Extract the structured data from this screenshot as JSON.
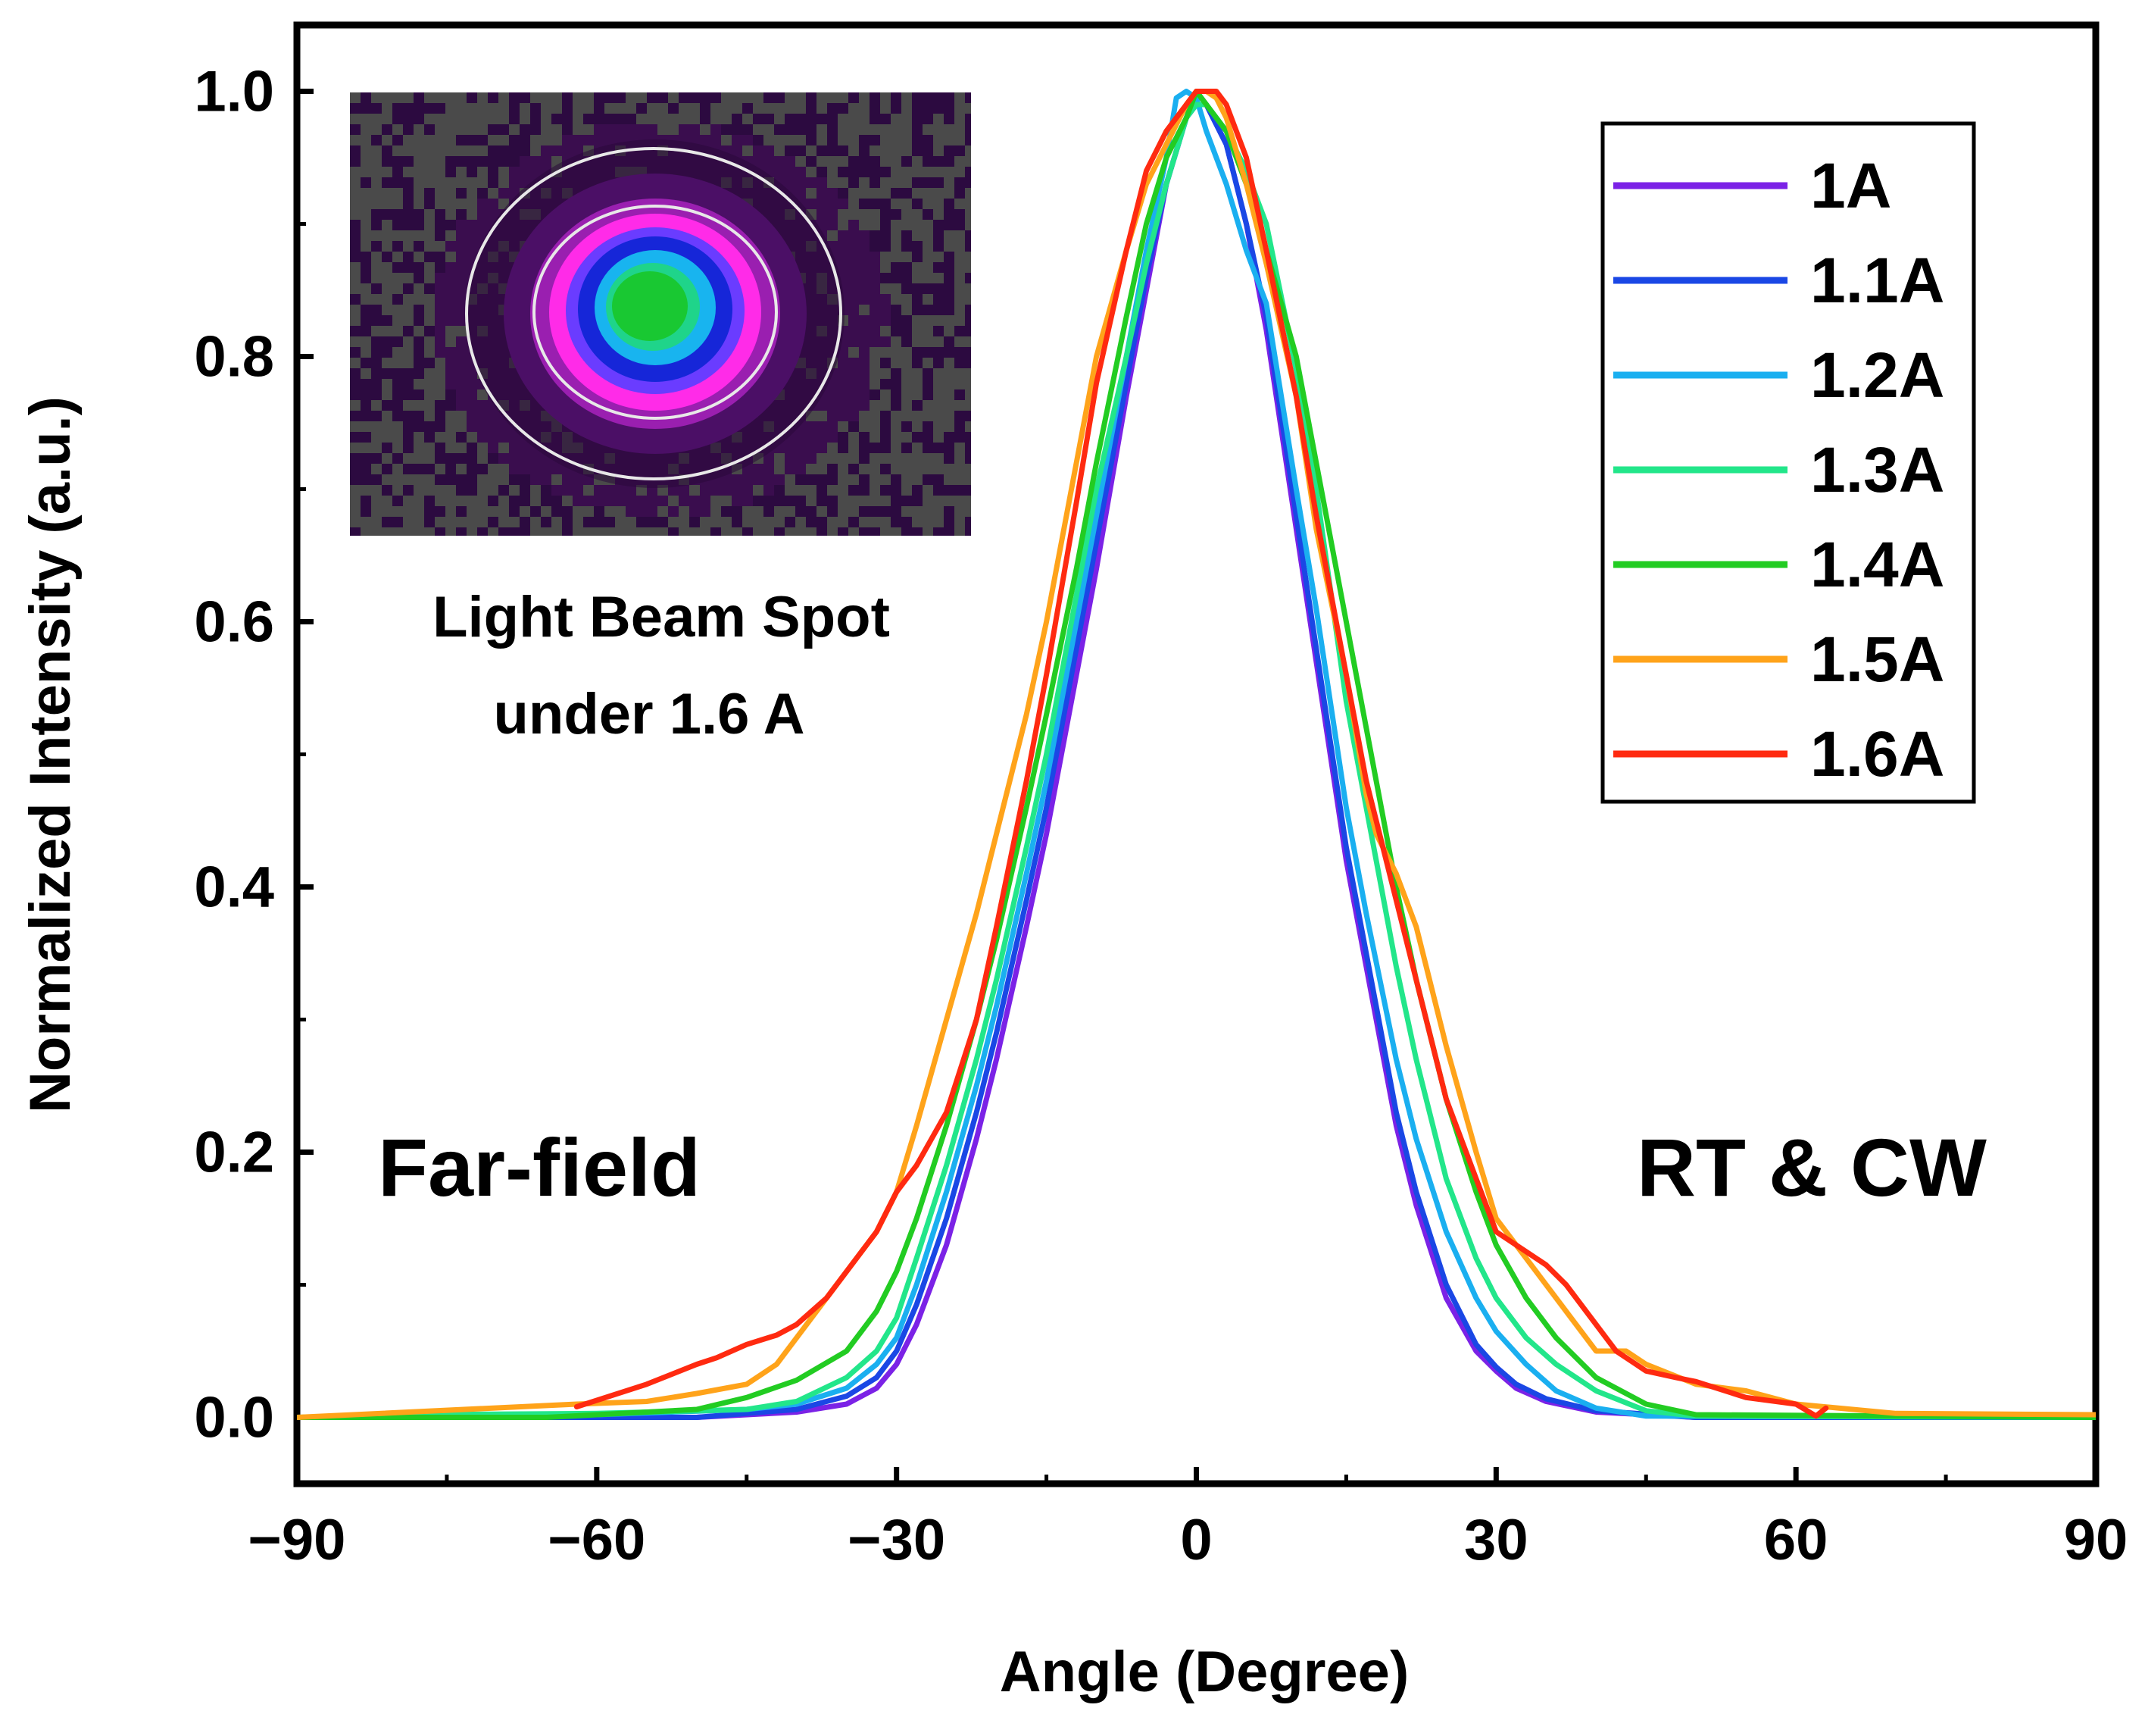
{
  "chart_data": {
    "type": "line",
    "title": "",
    "xlabel": "Angle (Degree)",
    "ylabel": "Normalized Intensity (a.u.)",
    "xlim": [
      -90,
      90
    ],
    "ylim": [
      -0.05,
      1.05
    ],
    "xticks": [
      -90,
      -60,
      -30,
      0,
      30,
      60,
      90
    ],
    "xtick_labels": [
      "−90",
      "−60",
      "−30",
      "0",
      "30",
      "60",
      "90"
    ],
    "yticks": [
      0.0,
      0.2,
      0.4,
      0.6,
      0.8,
      1.0
    ],
    "ytick_labels": [
      "0.0",
      "0.2",
      "0.4",
      "0.6",
      "0.8",
      "1.0"
    ],
    "grid": false,
    "legend_position": "top-right",
    "annotations": {
      "left": "Far-field",
      "right": "RT & CW",
      "inset_caption_line1": "Light Beam Spot",
      "inset_caption_line2": "under 1.6 A"
    },
    "series": [
      {
        "name": "1A",
        "color": "#7B22E6",
        "x": [
          -90,
          -50,
          -40,
          -35,
          -32,
          -30,
          -28,
          -25,
          -22,
          -20,
          -17,
          -15,
          -12,
          -10,
          -7,
          -5,
          -3,
          -1,
          0,
          1,
          3,
          5,
          7,
          10,
          12,
          15,
          17,
          20,
          22,
          25,
          28,
          30,
          32,
          35,
          40,
          50,
          90
        ],
        "y": [
          0.0,
          0.0,
          0.004,
          0.01,
          0.022,
          0.04,
          0.07,
          0.13,
          0.21,
          0.27,
          0.37,
          0.44,
          0.56,
          0.64,
          0.77,
          0.85,
          0.93,
          0.98,
          1.0,
          0.99,
          0.96,
          0.9,
          0.82,
          0.67,
          0.57,
          0.42,
          0.34,
          0.22,
          0.16,
          0.09,
          0.05,
          0.035,
          0.022,
          0.012,
          0.004,
          0.0,
          0.0
        ]
      },
      {
        "name": "1.1A",
        "color": "#1A47E5",
        "x": [
          -90,
          -50,
          -40,
          -35,
          -32,
          -30,
          -28,
          -25,
          -22,
          -20,
          -17,
          -15,
          -12,
          -10,
          -7,
          -5,
          -3,
          -1,
          0,
          1,
          3,
          5,
          7,
          10,
          12,
          15,
          17,
          20,
          22,
          25,
          28,
          30,
          32,
          35,
          40,
          50,
          90
        ],
        "y": [
          0.0,
          0.0,
          0.006,
          0.016,
          0.03,
          0.05,
          0.085,
          0.15,
          0.23,
          0.29,
          0.39,
          0.46,
          0.58,
          0.66,
          0.78,
          0.86,
          0.93,
          0.98,
          0.99,
          0.99,
          0.96,
          0.9,
          0.83,
          0.68,
          0.58,
          0.43,
          0.35,
          0.23,
          0.17,
          0.1,
          0.055,
          0.038,
          0.025,
          0.014,
          0.005,
          0.0,
          0.0
        ]
      },
      {
        "name": "1.2A",
        "color": "#1AAFF0",
        "x": [
          -90,
          -60,
          -45,
          -40,
          -35,
          -32,
          -30,
          -28,
          -25,
          -22,
          -20,
          -17,
          -15,
          -12,
          -10,
          -7,
          -5,
          -3,
          -2,
          -1,
          0,
          1,
          3,
          5,
          7,
          10,
          12,
          15,
          17,
          20,
          22,
          25,
          28,
          30,
          33,
          36,
          40,
          45,
          90
        ],
        "y": [
          0.0,
          0.002,
          0.006,
          0.01,
          0.022,
          0.04,
          0.06,
          0.1,
          0.17,
          0.25,
          0.31,
          0.41,
          0.48,
          0.6,
          0.68,
          0.8,
          0.88,
          0.95,
          0.995,
          1.0,
          0.995,
          0.97,
          0.93,
          0.88,
          0.84,
          0.7,
          0.61,
          0.46,
          0.38,
          0.27,
          0.21,
          0.14,
          0.09,
          0.065,
          0.04,
          0.02,
          0.007,
          0.001,
          0.0
        ]
      },
      {
        "name": "1.3A",
        "color": "#22E68A",
        "x": [
          -90,
          -78,
          -60,
          -45,
          -40,
          -35,
          -32,
          -30,
          -28,
          -25,
          -22,
          -20,
          -17,
          -15,
          -12,
          -10,
          -7,
          -5,
          -3,
          -1,
          0,
          1,
          3,
          5,
          7,
          10,
          12,
          15,
          17,
          20,
          22,
          25,
          28,
          30,
          33,
          36,
          40,
          45,
          50,
          90
        ],
        "y": [
          0.0,
          0.002,
          0.003,
          0.006,
          0.012,
          0.03,
          0.05,
          0.075,
          0.12,
          0.19,
          0.27,
          0.33,
          0.43,
          0.5,
          0.62,
          0.7,
          0.8,
          0.87,
          0.93,
          0.98,
          0.99,
          0.99,
          0.97,
          0.94,
          0.9,
          0.79,
          0.7,
          0.54,
          0.46,
          0.34,
          0.27,
          0.18,
          0.12,
          0.09,
          0.06,
          0.04,
          0.02,
          0.005,
          0.001,
          0.0
        ]
      },
      {
        "name": "1.4A",
        "color": "#22CC22",
        "x": [
          -90,
          -65,
          -50,
          -45,
          -40,
          -35,
          -32,
          -30,
          -28,
          -25,
          -22,
          -20,
          -17,
          -15,
          -12,
          -10,
          -7,
          -5,
          -3,
          -1,
          0,
          1,
          3,
          5,
          7,
          10,
          12,
          15,
          17,
          20,
          22,
          25,
          28,
          30,
          33,
          36,
          40,
          45,
          50,
          90
        ],
        "y": [
          0.0,
          0.0,
          0.006,
          0.015,
          0.028,
          0.05,
          0.08,
          0.11,
          0.15,
          0.22,
          0.3,
          0.36,
          0.46,
          0.53,
          0.64,
          0.72,
          0.83,
          0.9,
          0.95,
          0.98,
          1.0,
          0.99,
          0.97,
          0.93,
          0.88,
          0.8,
          0.72,
          0.6,
          0.52,
          0.4,
          0.33,
          0.24,
          0.17,
          0.13,
          0.09,
          0.06,
          0.03,
          0.01,
          0.002,
          0.0
        ]
      },
      {
        "name": "1.5A",
        "color": "#FFA31A",
        "x": [
          -90,
          -62,
          -55,
          -50,
          -45,
          -42,
          -40,
          -37,
          -35,
          -32,
          -30,
          -28,
          -25,
          -22,
          -20,
          -17,
          -15,
          -12,
          -10,
          -7,
          -5,
          -3,
          -1,
          0,
          1,
          2,
          3,
          5,
          7,
          10,
          12,
          15,
          17,
          18,
          20,
          22,
          25,
          28,
          30,
          33,
          35,
          38,
          40,
          43,
          45,
          50,
          55,
          60,
          70,
          90
        ],
        "y": [
          0.0,
          0.01,
          0.012,
          0.018,
          0.025,
          0.04,
          0.06,
          0.09,
          0.11,
          0.14,
          0.17,
          0.22,
          0.3,
          0.38,
          0.44,
          0.53,
          0.6,
          0.72,
          0.8,
          0.88,
          0.93,
          0.96,
          0.99,
          1.0,
          1.0,
          0.995,
          0.98,
          0.93,
          0.87,
          0.77,
          0.67,
          0.56,
          0.47,
          0.44,
          0.41,
          0.37,
          0.28,
          0.2,
          0.15,
          0.12,
          0.1,
          0.07,
          0.05,
          0.05,
          0.04,
          0.025,
          0.02,
          0.01,
          0.003,
          0.002
        ]
      },
      {
        "name": "1.6A",
        "color": "#FF2A10",
        "x": [
          -62,
          -55,
          -50,
          -48,
          -45,
          -42,
          -40,
          -37,
          -35,
          -32,
          -30,
          -28,
          -25,
          -22,
          -20,
          -17,
          -15,
          -12,
          -10,
          -7,
          -5,
          -3,
          -1,
          0,
          1,
          2,
          3,
          5,
          7,
          10,
          12,
          15,
          17,
          20,
          22,
          25,
          28,
          30,
          32,
          35,
          37,
          40,
          42,
          45,
          48,
          50,
          55,
          60,
          62,
          63
        ],
        "y": [
          0.008,
          0.025,
          0.04,
          0.045,
          0.055,
          0.062,
          0.07,
          0.09,
          0.11,
          0.14,
          0.17,
          0.19,
          0.23,
          0.3,
          0.37,
          0.48,
          0.56,
          0.69,
          0.78,
          0.88,
          0.94,
          0.97,
          0.99,
          1.0,
          1.0,
          1.0,
          0.99,
          0.95,
          0.88,
          0.77,
          0.68,
          0.56,
          0.48,
          0.39,
          0.33,
          0.24,
          0.18,
          0.14,
          0.13,
          0.115,
          0.1,
          0.07,
          0.05,
          0.035,
          0.03,
          0.027,
          0.015,
          0.01,
          0.001,
          0.007
        ]
      }
    ]
  }
}
